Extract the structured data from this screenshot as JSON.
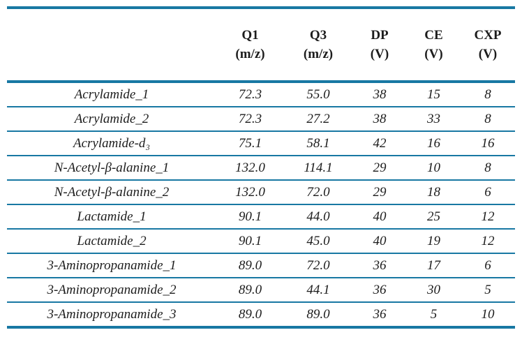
{
  "colors": {
    "rule": "#1878a3",
    "text": "#1c1c1c",
    "background": "#ffffff"
  },
  "table": {
    "description": "MRM transition parameters table",
    "columns": [
      {
        "line1": "",
        "line2": ""
      },
      {
        "line1": "Q1",
        "line2": "(m/z)"
      },
      {
        "line1": "Q3",
        "line2": "(m/z)"
      },
      {
        "line1": "DP",
        "line2": "(V)"
      },
      {
        "line1": "CE",
        "line2": "(V)"
      },
      {
        "line1": "CXP",
        "line2": "(V)"
      }
    ],
    "rows": [
      {
        "name": "Acrylamide_1",
        "q1": "72.3",
        "q3": "55.0",
        "dp": "38",
        "ce": "15",
        "cxp": "8"
      },
      {
        "name": "Acrylamide_2",
        "q1": "72.3",
        "q3": "27.2",
        "dp": "38",
        "ce": "33",
        "cxp": "8"
      },
      {
        "name": "Acrylamide-d₃",
        "q1": "75.1",
        "q3": "58.1",
        "dp": "42",
        "ce": "16",
        "cxp": "16"
      },
      {
        "name": "N-Acetyl-β-alanine_1",
        "q1": "132.0",
        "q3": "114.1",
        "dp": "29",
        "ce": "10",
        "cxp": "8"
      },
      {
        "name": "N-Acetyl-β-alanine_2",
        "q1": "132.0",
        "q3": "72.0",
        "dp": "29",
        "ce": "18",
        "cxp": "6"
      },
      {
        "name": "Lactamide_1",
        "q1": "90.1",
        "q3": "44.0",
        "dp": "40",
        "ce": "25",
        "cxp": "12"
      },
      {
        "name": "Lactamide_2",
        "q1": "90.1",
        "q3": "45.0",
        "dp": "40",
        "ce": "19",
        "cxp": "12"
      },
      {
        "name": "3-Aminopropanamide_1",
        "q1": "89.0",
        "q3": "72.0",
        "dp": "36",
        "ce": "17",
        "cxp": "6"
      },
      {
        "name": "3-Aminopropanamide_2",
        "q1": "89.0",
        "q3": "44.1",
        "dp": "36",
        "ce": "30",
        "cxp": "5"
      },
      {
        "name": "3-Aminopropanamide_3",
        "q1": "89.0",
        "q3": "89.0",
        "dp": "36",
        "ce": "5",
        "cxp": "10"
      }
    ]
  }
}
